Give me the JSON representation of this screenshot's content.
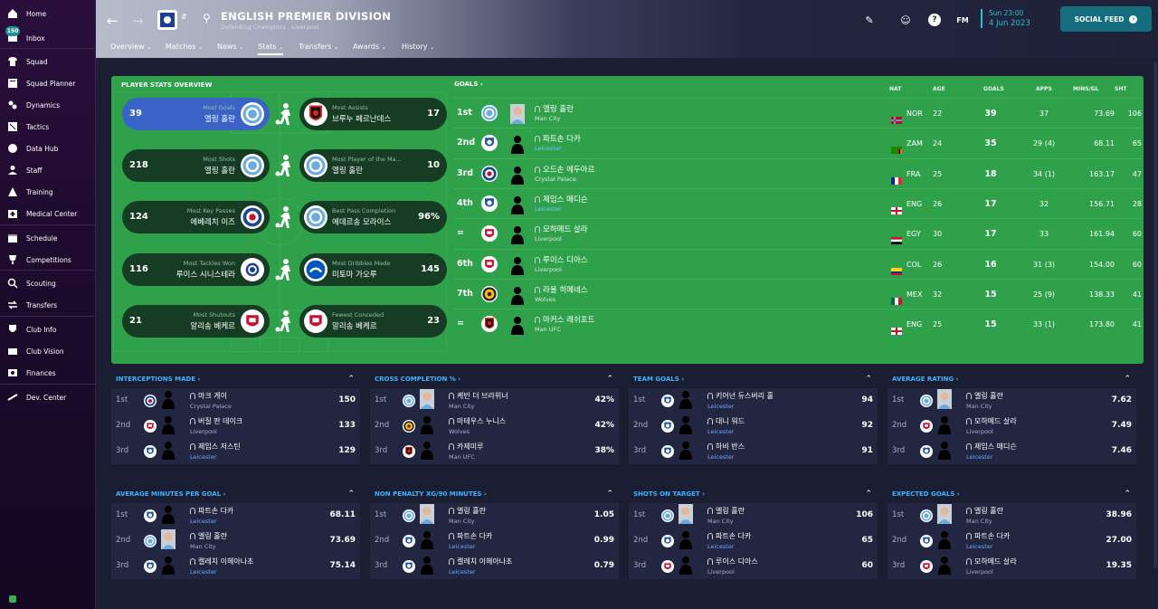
{
  "sidebar": {
    "items": [
      {
        "label": "Home",
        "icon": "home-icon"
      },
      {
        "label": "Inbox",
        "icon": "inbox-icon",
        "badge": "150"
      },
      {
        "label": "Squad",
        "icon": "shirt-icon"
      },
      {
        "label": "Squad Planner",
        "icon": "planner-icon"
      },
      {
        "label": "Dynamics",
        "icon": "dynamics-icon"
      },
      {
        "label": "Tactics",
        "icon": "tactics-icon"
      },
      {
        "label": "Data Hub",
        "icon": "data-hub-icon"
      },
      {
        "label": "Staff",
        "icon": "staff-icon"
      },
      {
        "label": "Training",
        "icon": "training-icon"
      },
      {
        "label": "Medical Center",
        "icon": "medical-icon"
      },
      {
        "label": "Schedule",
        "icon": "calendar-icon"
      },
      {
        "label": "Competitions",
        "icon": "trophy-icon"
      },
      {
        "label": "Scouting",
        "icon": "scouting-icon"
      },
      {
        "label": "Transfers",
        "icon": "transfers-icon"
      },
      {
        "label": "Club Info",
        "icon": "shield-icon"
      },
      {
        "label": "Club Vision",
        "icon": "vision-icon"
      },
      {
        "label": "Finances",
        "icon": "finances-icon"
      },
      {
        "label": "Dev. Center",
        "icon": "dev-center-icon"
      }
    ]
  },
  "header": {
    "title": "ENGLISH PREMIER DIVISION",
    "subtitle": "Defending Champions - Liverpool",
    "date_line1": "Sun 23:00",
    "date_line2": "4 Jun 2023",
    "social_label": "SOCIAL FEED",
    "fm_label": "FM",
    "tabs": [
      {
        "label": "Overview",
        "active": false
      },
      {
        "label": "Matches",
        "active": false
      },
      {
        "label": "News",
        "active": false
      },
      {
        "label": "Stats",
        "active": true
      },
      {
        "label": "Transfers",
        "active": false
      },
      {
        "label": "Awards",
        "active": false
      },
      {
        "label": "History",
        "active": false
      }
    ]
  },
  "overview": {
    "title": "PLAYER STATS OVERVIEW",
    "left": [
      {
        "label": "Most Goals",
        "name": "엘링 홀란",
        "value": "39",
        "crest": "mancity",
        "highlight": true
      },
      {
        "label": "Most Shots",
        "name": "엘링 홀란",
        "value": "218",
        "crest": "mancity"
      },
      {
        "label": "Most Key Passes",
        "name": "에베레치 이즈",
        "value": "124",
        "crest": "palace"
      },
      {
        "label": "Most Tackles Won",
        "name": "루이스 시니스테라",
        "value": "116",
        "crest": "leeds"
      },
      {
        "label": "Most Shutouts",
        "name": "알리송 베케르",
        "value": "21",
        "crest": "liverpool"
      }
    ],
    "right": [
      {
        "label": "Most Assists",
        "name": "브루누 페르난데스",
        "value": "17",
        "crest": "manufc"
      },
      {
        "label": "Most Player of the Ma...",
        "name": "엘링 홀란",
        "value": "10",
        "crest": "mancity"
      },
      {
        "label": "Best Pass Completion",
        "name": "에데르송 모라이스",
        "value": "96%",
        "crest": "mancity"
      },
      {
        "label": "Most Dribbles Made",
        "name": "미토마 가오루",
        "value": "145",
        "crest": "brighton"
      },
      {
        "label": "Fewest Conceded",
        "name": "알리송 베케르",
        "value": "23",
        "crest": "liverpool"
      }
    ]
  },
  "goals": {
    "title": "GOALS",
    "headers": {
      "nat": "NAT",
      "age": "AGE",
      "goals": "GOALS",
      "apps": "APPS",
      "mins": "MINS/GL",
      "sht": "SHT"
    },
    "rows": [
      {
        "rank": "1st",
        "name": "엘링 홀란",
        "club": "Man City",
        "nat": "NOR",
        "age": "22",
        "goals": "39",
        "apps": "37",
        "mins": "73.69",
        "sht": "106",
        "crest": "mancity",
        "flag": "nor",
        "photo": true
      },
      {
        "rank": "2nd",
        "name": "파트손 다카",
        "club": "Leicester",
        "nat": "ZAM",
        "age": "24",
        "goals": "35",
        "apps": "29 (4)",
        "mins": "68.11",
        "sht": "65",
        "crest": "leicester",
        "flag": "zam"
      },
      {
        "rank": "3rd",
        "name": "오드손 에두아르",
        "club": "Crystal Palace",
        "nat": "FRA",
        "age": "25",
        "goals": "18",
        "apps": "34 (1)",
        "mins": "163.17",
        "sht": "47",
        "crest": "palace",
        "flag": "fra"
      },
      {
        "rank": "4th",
        "name": "제임스 매디슨",
        "club": "Leicester",
        "nat": "ENG",
        "age": "26",
        "goals": "17",
        "apps": "32",
        "mins": "156.71",
        "sht": "28",
        "crest": "leicester",
        "flag": "eng"
      },
      {
        "rank": "=",
        "name": "모하메드 살라",
        "club": "Liverpool",
        "nat": "EGY",
        "age": "30",
        "goals": "17",
        "apps": "33",
        "mins": "161.94",
        "sht": "60",
        "crest": "liverpool",
        "flag": "egy"
      },
      {
        "rank": "6th",
        "name": "루이스 디아스",
        "club": "Liverpool",
        "nat": "COL",
        "age": "26",
        "goals": "16",
        "apps": "31 (3)",
        "mins": "154.00",
        "sht": "60",
        "crest": "liverpool",
        "flag": "col"
      },
      {
        "rank": "7th",
        "name": "라울 히메네스",
        "club": "Wolves",
        "nat": "MEX",
        "age": "32",
        "goals": "15",
        "apps": "25 (9)",
        "mins": "138.33",
        "sht": "41",
        "crest": "wolves",
        "flag": "mex"
      },
      {
        "rank": "=",
        "name": "마커스 래쉬포드",
        "club": "Man UFC",
        "nat": "ENG",
        "age": "25",
        "goals": "15",
        "apps": "33 (1)",
        "mins": "173.80",
        "sht": "41",
        "crest": "manufc",
        "flag": "eng"
      }
    ]
  },
  "panels": [
    {
      "title": "INTERCEPTIONS MADE",
      "rows": [
        {
          "rank": "1st",
          "name": "마크 게이",
          "club": "Crystal Palace",
          "value": "150",
          "crest": "palace"
        },
        {
          "rank": "2nd",
          "name": "버질 판 데이크",
          "club": "Liverpool",
          "value": "133",
          "crest": "liverpool"
        },
        {
          "rank": "3rd",
          "name": "제임스 저스틴",
          "club": "Leicester",
          "value": "129",
          "crest": "leicester"
        }
      ]
    },
    {
      "title": "CROSS COMPLETION %",
      "rows": [
        {
          "rank": "1st",
          "name": "케빈 더 브라위너",
          "club": "Man City",
          "value": "42%",
          "crest": "mancity",
          "photo": true
        },
        {
          "rank": "2nd",
          "name": "마테우스 누니스",
          "club": "Wolves",
          "value": "42%",
          "crest": "wolves"
        },
        {
          "rank": "3rd",
          "name": "카제미루",
          "club": "Man UFC",
          "value": "38%",
          "crest": "manufc"
        }
      ]
    },
    {
      "title": "TEAM GOALS",
      "rows": [
        {
          "rank": "1st",
          "name": "키어넌 듀스버리 홀",
          "club": "Leicester",
          "value": "94",
          "crest": "leicester"
        },
        {
          "rank": "2nd",
          "name": "대니 워드",
          "club": "Leicester",
          "value": "92",
          "crest": "leicester"
        },
        {
          "rank": "3rd",
          "name": "하비 반스",
          "club": "Leicester",
          "value": "91",
          "crest": "leicester"
        }
      ]
    },
    {
      "title": "AVERAGE RATING",
      "rows": [
        {
          "rank": "1st",
          "name": "엘링 홀란",
          "club": "Man City",
          "value": "7.62",
          "crest": "mancity",
          "photo": true
        },
        {
          "rank": "2nd",
          "name": "모하메드 살라",
          "club": "Liverpool",
          "value": "7.49",
          "crest": "liverpool"
        },
        {
          "rank": "3rd",
          "name": "제임스 매디슨",
          "club": "Leicester",
          "value": "7.46",
          "crest": "leicester"
        }
      ]
    },
    {
      "title": "AVERAGE MINUTES PER GOAL",
      "rows": [
        {
          "rank": "1st",
          "name": "파트손 다카",
          "club": "Leicester",
          "value": "68.11",
          "crest": "leicester"
        },
        {
          "rank": "2nd",
          "name": "엘링 홀란",
          "club": "Man City",
          "value": "73.69",
          "crest": "mancity",
          "photo": true
        },
        {
          "rank": "3rd",
          "name": "켈레치 이헤아나초",
          "club": "Leicester",
          "value": "75.14",
          "crest": "leicester"
        }
      ]
    },
    {
      "title": "NON PENALTY XG/90 MINUTES",
      "rows": [
        {
          "rank": "1st",
          "name": "엘링 홀란",
          "club": "Man City",
          "value": "1.05",
          "crest": "mancity",
          "photo": true
        },
        {
          "rank": "2nd",
          "name": "파트손 다카",
          "club": "Leicester",
          "value": "0.99",
          "crest": "leicester"
        },
        {
          "rank": "3rd",
          "name": "켈레치 이헤아나초",
          "club": "Leicester",
          "value": "0.79",
          "crest": "leicester"
        }
      ]
    },
    {
      "title": "SHOTS ON TARGET",
      "rows": [
        {
          "rank": "1st",
          "name": "엘링 홀란",
          "club": "Man City",
          "value": "106",
          "crest": "mancity",
          "photo": true
        },
        {
          "rank": "2nd",
          "name": "파트손 다카",
          "club": "Leicester",
          "value": "65",
          "crest": "leicester"
        },
        {
          "rank": "3rd",
          "name": "루이스 디아스",
          "club": "Liverpool",
          "value": "60",
          "crest": "liverpool"
        }
      ]
    },
    {
      "title": "EXPECTED GOALS",
      "rows": [
        {
          "rank": "1st",
          "name": "엘링 홀란",
          "club": "Man City",
          "value": "38.96",
          "crest": "mancity",
          "photo": true
        },
        {
          "rank": "2nd",
          "name": "파트손 다카",
          "club": "Leicester",
          "value": "27.00",
          "crest": "leicester"
        },
        {
          "rank": "3rd",
          "name": "모하메드 살라",
          "club": "Liverpool",
          "value": "19.35",
          "crest": "liverpool"
        }
      ]
    }
  ],
  "colors": {
    "pitch": "#2fa14b",
    "accent": "#27c0d4",
    "link": "#3fb3ff",
    "leicester": "#6aa9ff",
    "highlight": "#3a63c8"
  }
}
